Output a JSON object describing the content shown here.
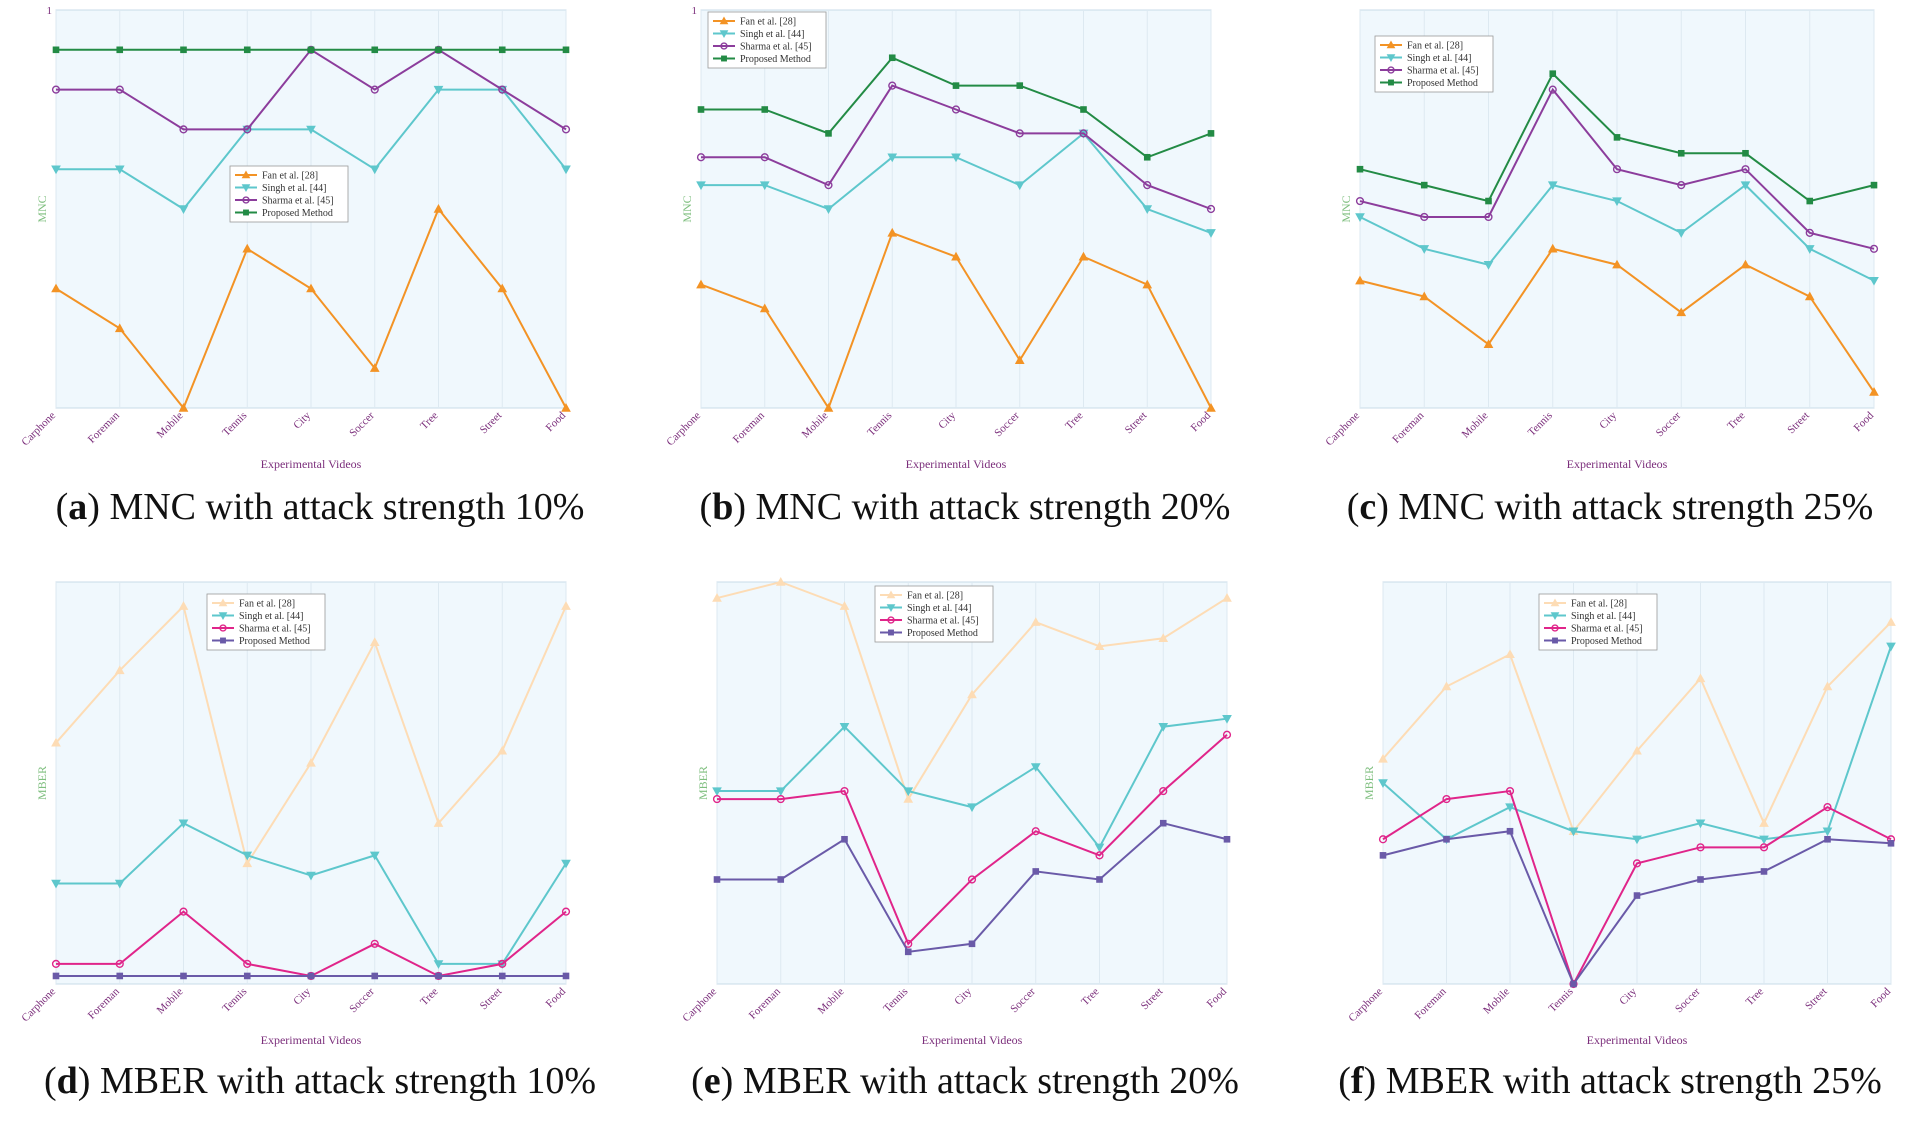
{
  "chart_data": [
    {
      "id": "a",
      "type": "line",
      "caption_letter": "a",
      "caption_text": "MNC with attack strength 10%",
      "ylabel": "MNC",
      "xlabel": "Experimental Videos",
      "ytick_top": "1",
      "ylim": [
        0,
        1
      ],
      "legend_position": "center-right",
      "categories": [
        "Carphone",
        "Foreman",
        "Mobile",
        "Tennis",
        "City",
        "Soccer",
        "Tree",
        "Street",
        "Food"
      ],
      "series": [
        {
          "name": "Fan et al. [28]",
          "marker": "triangle-up",
          "color": "#f39325",
          "values": [
            0.3,
            0.2,
            0.0,
            0.4,
            0.3,
            0.1,
            0.5,
            0.3,
            0.0
          ]
        },
        {
          "name": "Singh et al. [44]",
          "marker": "triangle-down",
          "color": "#5ec7cc",
          "values": [
            0.6,
            0.6,
            0.5,
            0.7,
            0.7,
            0.6,
            0.8,
            0.8,
            0.6
          ]
        },
        {
          "name": "Sharma et al. [45]",
          "marker": "circle",
          "color": "#8c3d9c",
          "values": [
            0.8,
            0.8,
            0.7,
            0.7,
            0.9,
            0.8,
            0.9,
            0.8,
            0.7
          ]
        },
        {
          "name": "Proposed Method",
          "marker": "square",
          "color": "#238b45",
          "values": [
            0.9,
            0.9,
            0.9,
            0.9,
            0.9,
            0.9,
            0.9,
            0.9,
            0.9
          ]
        }
      ]
    },
    {
      "id": "b",
      "type": "line",
      "caption_letter": "b",
      "caption_text": "MNC with attack strength 20%",
      "ylabel": "MNC",
      "xlabel": "Experimental Videos",
      "ytick_top": "1",
      "ylim": [
        0,
        1
      ],
      "legend_position": "top-left",
      "categories": [
        "Carphone",
        "Foreman",
        "Mobile",
        "Tennis",
        "City",
        "Soccer",
        "Tree",
        "Street",
        "Food"
      ],
      "series": [
        {
          "name": "Fan et al. [28]",
          "marker": "triangle-up",
          "color": "#f39325",
          "values": [
            0.31,
            0.25,
            0.0,
            0.44,
            0.38,
            0.12,
            0.38,
            0.31,
            0.0
          ]
        },
        {
          "name": "Singh et al. [44]",
          "marker": "triangle-down",
          "color": "#5ec7cc",
          "values": [
            0.56,
            0.56,
            0.5,
            0.63,
            0.63,
            0.56,
            0.69,
            0.5,
            0.44
          ]
        },
        {
          "name": "Sharma et al. [45]",
          "marker": "circle",
          "color": "#8c3d9c",
          "values": [
            0.63,
            0.63,
            0.56,
            0.81,
            0.75,
            0.69,
            0.69,
            0.56,
            0.5
          ]
        },
        {
          "name": "Proposed Method",
          "marker": "square",
          "color": "#238b45",
          "values": [
            0.75,
            0.75,
            0.69,
            0.88,
            0.81,
            0.81,
            0.75,
            0.63,
            0.69
          ]
        }
      ]
    },
    {
      "id": "c",
      "type": "line",
      "caption_letter": "c",
      "caption_text": "MNC with attack strength 25%",
      "ylabel": "MNC",
      "xlabel": "Experimental Videos",
      "ytick_top": "",
      "ylim": [
        0,
        1
      ],
      "legend_position": "top-left",
      "categories": [
        "Carphone",
        "Foreman",
        "Mobile",
        "Tennis",
        "City",
        "Soccer",
        "Tree",
        "Street",
        "Food"
      ],
      "series": [
        {
          "name": "Fan et al. [28]",
          "marker": "triangle-up",
          "color": "#f39325",
          "values": [
            0.32,
            0.28,
            0.16,
            0.4,
            0.36,
            0.24,
            0.36,
            0.28,
            0.04
          ]
        },
        {
          "name": "Singh et al. [44]",
          "marker": "triangle-down",
          "color": "#5ec7cc",
          "values": [
            0.48,
            0.4,
            0.36,
            0.56,
            0.52,
            0.44,
            0.56,
            0.4,
            0.32
          ]
        },
        {
          "name": "Sharma et al. [45]",
          "marker": "circle",
          "color": "#8c3d9c",
          "values": [
            0.52,
            0.48,
            0.48,
            0.8,
            0.6,
            0.56,
            0.6,
            0.44,
            0.4
          ]
        },
        {
          "name": "Proposed Method",
          "marker": "square",
          "color": "#238b45",
          "values": [
            0.6,
            0.56,
            0.52,
            0.84,
            0.68,
            0.64,
            0.64,
            0.52,
            0.56
          ]
        }
      ]
    },
    {
      "id": "d",
      "type": "line",
      "caption_letter": "d",
      "caption_text": "MBER with attack strength 10%",
      "ylabel": "MBER",
      "xlabel": "Experimental Videos",
      "ytick_top": "",
      "ylim": [
        0,
        1
      ],
      "legend_position": "top-center",
      "categories": [
        "Carphone",
        "Foreman",
        "Mobile",
        "Tennis",
        "City",
        "Soccer",
        "Tree",
        "Street",
        "Food"
      ],
      "series": [
        {
          "name": "Fan et al. [28]",
          "marker": "triangle-up",
          "color": "#fddcb5",
          "values": [
            0.6,
            0.78,
            0.94,
            0.3,
            0.55,
            0.85,
            0.4,
            0.58,
            0.94
          ]
        },
        {
          "name": "Singh et al. [44]",
          "marker": "triangle-down",
          "color": "#5ec7cc",
          "values": [
            0.25,
            0.25,
            0.4,
            0.32,
            0.27,
            0.32,
            0.05,
            0.05,
            0.3
          ]
        },
        {
          "name": "Sharma et al. [45]",
          "marker": "circle",
          "color": "#e0258a",
          "values": [
            0.05,
            0.05,
            0.18,
            0.05,
            0.02,
            0.1,
            0.02,
            0.05,
            0.18
          ]
        },
        {
          "name": "Proposed Method",
          "marker": "square",
          "color": "#6a5aa8",
          "values": [
            0.02,
            0.02,
            0.02,
            0.02,
            0.02,
            0.02,
            0.02,
            0.02,
            0.02
          ]
        }
      ]
    },
    {
      "id": "e",
      "type": "line",
      "caption_letter": "e",
      "caption_text": "MBER with attack strength 20%",
      "ylabel": "MBER",
      "xlabel": "Experimental Videos",
      "ytick_top": "",
      "ylim": [
        0,
        1
      ],
      "legend_position": "top-center",
      "categories": [
        "Carphone",
        "Foreman",
        "Mobile",
        "Tennis",
        "City",
        "Soccer",
        "Tree",
        "Street",
        "Food"
      ],
      "series": [
        {
          "name": "Fan et al. [28]",
          "marker": "triangle-up",
          "color": "#fddcb5",
          "values": [
            0.96,
            1.0,
            0.94,
            0.46,
            0.72,
            0.9,
            0.84,
            0.86,
            0.96
          ]
        },
        {
          "name": "Singh et al. [44]",
          "marker": "triangle-down",
          "color": "#5ec7cc",
          "values": [
            0.48,
            0.48,
            0.64,
            0.48,
            0.44,
            0.54,
            0.34,
            0.64,
            0.66
          ]
        },
        {
          "name": "Sharma et al. [45]",
          "marker": "circle",
          "color": "#e0258a",
          "values": [
            0.46,
            0.46,
            0.48,
            0.1,
            0.26,
            0.38,
            0.32,
            0.48,
            0.62
          ]
        },
        {
          "name": "Proposed Method",
          "marker": "square",
          "color": "#6a5aa8",
          "values": [
            0.26,
            0.26,
            0.36,
            0.08,
            0.1,
            0.28,
            0.26,
            0.4,
            0.36
          ]
        }
      ]
    },
    {
      "id": "f",
      "type": "line",
      "caption_letter": "f",
      "caption_text": "MBER with attack strength 25%",
      "ylabel": "MBER",
      "xlabel": "Experimental Videos",
      "ytick_top": "",
      "ylim": [
        0,
        1
      ],
      "legend_position": "top-center",
      "categories": [
        "Carphone",
        "Foreman",
        "Mobile",
        "Tennis",
        "City",
        "Soccer",
        "Tree",
        "Street",
        "Food"
      ],
      "series": [
        {
          "name": "Fan et al. [28]",
          "marker": "triangle-up",
          "color": "#fddcb5",
          "values": [
            0.56,
            0.74,
            0.82,
            0.38,
            0.58,
            0.76,
            0.4,
            0.74,
            0.9
          ]
        },
        {
          "name": "Singh et al. [44]",
          "marker": "triangle-down",
          "color": "#5ec7cc",
          "values": [
            0.5,
            0.36,
            0.44,
            0.38,
            0.36,
            0.4,
            0.36,
            0.38,
            0.84
          ]
        },
        {
          "name": "Sharma et al. [45]",
          "marker": "circle",
          "color": "#e0258a",
          "values": [
            0.36,
            0.46,
            0.48,
            0.0,
            0.3,
            0.34,
            0.34,
            0.44,
            0.36
          ]
        },
        {
          "name": "Proposed Method",
          "marker": "square",
          "color": "#6a5aa8",
          "values": [
            0.32,
            0.36,
            0.38,
            0.0,
            0.22,
            0.26,
            0.28,
            0.36,
            0.35
          ]
        }
      ]
    }
  ]
}
